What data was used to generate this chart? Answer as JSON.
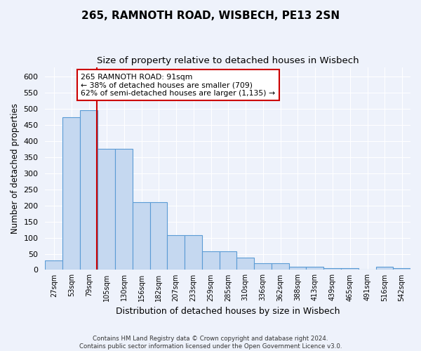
{
  "title": "265, RAMNOTH ROAD, WISBECH, PE13 2SN",
  "subtitle": "Size of property relative to detached houses in Wisbech",
  "xlabel": "Distribution of detached houses by size in Wisbech",
  "ylabel": "Number of detached properties",
  "footer_line1": "Contains HM Land Registry data © Crown copyright and database right 2024.",
  "footer_line2": "Contains public sector information licensed under the Open Government Licence v3.0.",
  "bin_labels": [
    "27sqm",
    "53sqm",
    "79sqm",
    "105sqm",
    "130sqm",
    "156sqm",
    "182sqm",
    "207sqm",
    "233sqm",
    "259sqm",
    "285sqm",
    "310sqm",
    "336sqm",
    "362sqm",
    "388sqm",
    "413sqm",
    "439sqm",
    "465sqm",
    "491sqm",
    "516sqm",
    "542sqm"
  ],
  "bar_values": [
    30,
    475,
    497,
    375,
    375,
    210,
    210,
    108,
    108,
    57,
    57,
    38,
    20,
    20,
    10,
    10,
    6,
    6,
    2,
    10,
    6
  ],
  "bin_edges": [
    14,
    40,
    66,
    92,
    118,
    144,
    170,
    195,
    221,
    247,
    273,
    298,
    324,
    350,
    376,
    401,
    427,
    453,
    479,
    505,
    530,
    556
  ],
  "bar_color": "#C5D8F0",
  "bar_edge_color": "#5A9BD5",
  "red_line_x": 91,
  "annotation_text": "265 RAMNOTH ROAD: 91sqm\n← 38% of detached houses are smaller (709)\n62% of semi-detached houses are larger (1,135) →",
  "annotation_box_color": "#ffffff",
  "annotation_box_edge": "#cc0000",
  "ylim": [
    0,
    630
  ],
  "yticks": [
    0,
    50,
    100,
    150,
    200,
    250,
    300,
    350,
    400,
    450,
    500,
    550,
    600
  ],
  "bg_color": "#eef2fb",
  "plot_bg_color": "#eef2fb",
  "grid_color": "#ffffff",
  "title_fontsize": 11,
  "subtitle_fontsize": 9.5,
  "xlabel_fontsize": 9,
  "ylabel_fontsize": 8.5
}
